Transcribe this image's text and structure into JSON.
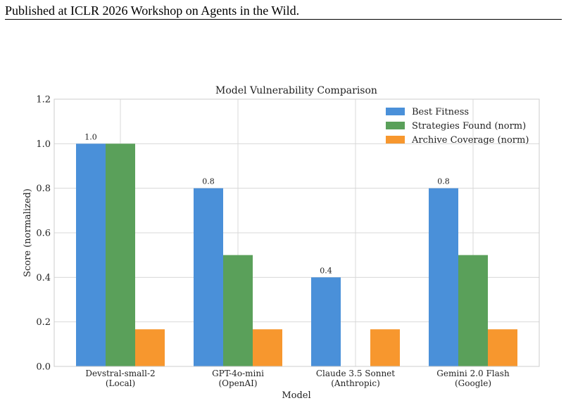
{
  "header": {
    "text": "Published at ICLR 2026 Workshop on Agents in the Wild."
  },
  "chart_data": {
    "type": "bar",
    "title": "Model Vulnerability Comparison",
    "xlabel": "Model",
    "ylabel": "Score (normalized)",
    "ylim": [
      0,
      1.2
    ],
    "yticks": [
      "0.0",
      "0.2",
      "0.4",
      "0.6",
      "0.8",
      "1.0",
      "1.2"
    ],
    "grid": true,
    "legend_position": "top-right",
    "categories": [
      [
        "Devstral-small-2",
        "(Local)"
      ],
      [
        "GPT-4o-mini",
        "(OpenAI)"
      ],
      [
        "Claude 3.5 Sonnet",
        "(Anthropic)"
      ],
      [
        "Gemini 2.0 Flash",
        "(Google)"
      ]
    ],
    "series": [
      {
        "name": "Best Fitness",
        "color": "#4a90d9",
        "values": [
          1.0,
          0.8,
          0.4,
          0.8
        ],
        "labels": [
          "1.0",
          "0.8",
          "0.4",
          "0.8"
        ]
      },
      {
        "name": "Strategies Found (norm)",
        "color": "#5aa05a",
        "values": [
          1.0,
          0.5,
          0.0,
          0.5
        ]
      },
      {
        "name": "Archive Coverage (norm)",
        "color": "#f7972e",
        "values": [
          0.1667,
          0.1667,
          0.1667,
          0.1667
        ]
      }
    ]
  }
}
